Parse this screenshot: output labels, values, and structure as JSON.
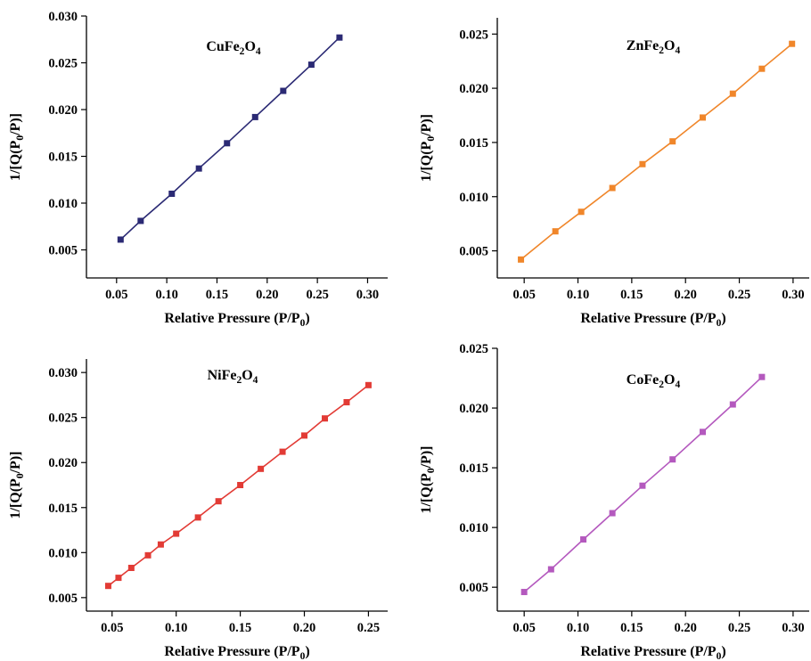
{
  "chart_data": [
    {
      "type": "line",
      "title_parts": [
        "CuFe",
        "2",
        "O",
        "4"
      ],
      "xlabel_parts": [
        "Relative Pressure (P/P",
        "0",
        ")"
      ],
      "ylabel_parts": [
        "1/[Q(P",
        "0",
        "/P)]"
      ],
      "xlim": [
        0.02,
        0.32
      ],
      "ylim": [
        0.002,
        0.03
      ],
      "xticks": [
        "0.05",
        "0.10",
        "0.15",
        "0.20",
        "0.25",
        "0.30"
      ],
      "yticks": [
        "0.005",
        "0.010",
        "0.015",
        "0.020",
        "0.025",
        "0.030"
      ],
      "color": "#2b2a74",
      "x": [
        0.054,
        0.074,
        0.105,
        0.132,
        0.16,
        0.188,
        0.216,
        0.244,
        0.272
      ],
      "y": [
        0.0061,
        0.0081,
        0.011,
        0.0137,
        0.0164,
        0.0192,
        0.022,
        0.0248,
        0.0277
      ]
    },
    {
      "type": "line",
      "title_parts": [
        "ZnFe",
        "2",
        "O",
        "4"
      ],
      "xlabel_parts": [
        "Relative Pressure (P/P",
        "0",
        ")"
      ],
      "ylabel_parts": [
        "1/[Q(P",
        "0",
        "/P)]"
      ],
      "xlim": [
        0.025,
        0.315
      ],
      "ylim": [
        0.0025,
        0.0265
      ],
      "xticks": [
        "0.05",
        "0.10",
        "0.15",
        "0.20",
        "0.25",
        "0.30"
      ],
      "yticks": [
        "0.005",
        "0.010",
        "0.015",
        "0.020",
        "0.025"
      ],
      "color": "#f0862a",
      "x": [
        0.047,
        0.079,
        0.103,
        0.132,
        0.16,
        0.188,
        0.216,
        0.244,
        0.271,
        0.299
      ],
      "y": [
        0.0042,
        0.0068,
        0.0086,
        0.0108,
        0.013,
        0.0151,
        0.0173,
        0.0195,
        0.0218,
        0.0241
      ]
    },
    {
      "type": "line",
      "title_parts": [
        "NiFe",
        "2",
        "O",
        "4"
      ],
      "xlabel_parts": [
        "Relative Pressure (P/P",
        "0",
        ")"
      ],
      "ylabel_parts": [
        "1/[Q(P",
        "0",
        "/P)]"
      ],
      "xlim": [
        0.03,
        0.265
      ],
      "ylim": [
        0.0035,
        0.0315
      ],
      "xticks": [
        "0.05",
        "0.10",
        "0.15",
        "0.20",
        "0.25"
      ],
      "yticks": [
        "0.005",
        "0.010",
        "0.015",
        "0.020",
        "0.025",
        "0.030"
      ],
      "color": "#e23b35",
      "x": [
        0.047,
        0.055,
        0.065,
        0.078,
        0.088,
        0.1,
        0.117,
        0.133,
        0.15,
        0.166,
        0.183,
        0.2,
        0.216,
        0.233,
        0.25
      ],
      "y": [
        0.0063,
        0.0072,
        0.0083,
        0.0097,
        0.0109,
        0.0121,
        0.0139,
        0.0157,
        0.0175,
        0.0193,
        0.0212,
        0.023,
        0.0249,
        0.0267,
        0.0286
      ]
    },
    {
      "type": "line",
      "title_parts": [
        "CoFe",
        "2",
        "O",
        "4"
      ],
      "xlabel_parts": [
        "Relative Pressure (P/P",
        "0",
        ")"
      ],
      "ylabel_parts": [
        "1/[Q(P",
        "0",
        "/P)]"
      ],
      "xlim": [
        0.025,
        0.315
      ],
      "ylim": [
        0.003,
        0.025
      ],
      "xticks": [
        "0.05",
        "0.10",
        "0.15",
        "0.20",
        "0.25",
        "0.30"
      ],
      "yticks": [
        "0.005",
        "0.010",
        "0.015",
        "0.020",
        "0.025"
      ],
      "color": "#b459be",
      "x": [
        0.05,
        0.075,
        0.105,
        0.132,
        0.16,
        0.188,
        0.216,
        0.244,
        0.271
      ],
      "y": [
        0.0046,
        0.0065,
        0.009,
        0.0112,
        0.0135,
        0.0157,
        0.018,
        0.0203,
        0.0226
      ]
    }
  ]
}
